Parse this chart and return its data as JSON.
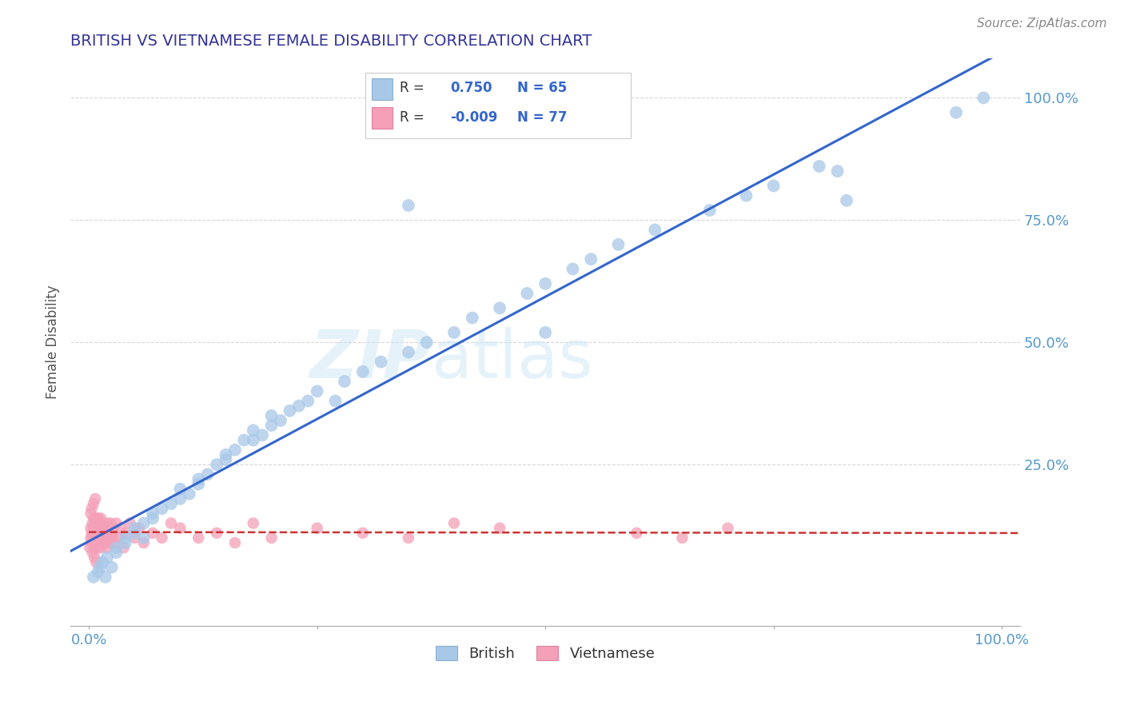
{
  "title": "BRITISH VS VIETNAMESE FEMALE DISABILITY CORRELATION CHART",
  "source": "Source: ZipAtlas.com",
  "ylabel": "Female Disability",
  "british_r": 0.75,
  "british_n": 65,
  "vietnamese_r": -0.009,
  "vietnamese_n": 77,
  "british_color": "#a8c8e8",
  "vietnamese_color": "#f4a0b8",
  "british_line_color": "#3366cc",
  "vietnamese_line_color": "#cc3333",
  "grid_color": "#cccccc",
  "watermark": "ZIPatlas",
  "legend_british": "British",
  "legend_vietnamese": "Vietnamese",
  "title_color": "#333399",
  "source_color": "#888888",
  "axis_tick_color": "#5599cc",
  "xlim": [
    0.0,
    1.0
  ],
  "ylim": [
    -0.05,
    1.05
  ],
  "british_x": [
    0.005,
    0.01,
    0.012,
    0.015,
    0.018,
    0.02,
    0.025,
    0.03,
    0.03,
    0.04,
    0.04,
    0.05,
    0.05,
    0.06,
    0.06,
    0.07,
    0.07,
    0.08,
    0.09,
    0.1,
    0.1,
    0.11,
    0.12,
    0.12,
    0.13,
    0.14,
    0.15,
    0.15,
    0.16,
    0.17,
    0.18,
    0.18,
    0.19,
    0.2,
    0.2,
    0.21,
    0.22,
    0.23,
    0.24,
    0.25,
    0.27,
    0.28,
    0.3,
    0.32,
    0.35,
    0.37,
    0.4,
    0.42,
    0.45,
    0.48,
    0.5,
    0.53,
    0.55,
    0.58,
    0.62,
    0.68,
    0.72,
    0.75,
    0.8,
    0.35,
    0.5,
    0.82,
    0.95,
    0.98,
    0.83
  ],
  "british_y": [
    0.02,
    0.03,
    0.04,
    0.05,
    0.02,
    0.06,
    0.04,
    0.07,
    0.08,
    0.09,
    0.1,
    0.11,
    0.12,
    0.1,
    0.13,
    0.14,
    0.15,
    0.16,
    0.17,
    0.18,
    0.2,
    0.19,
    0.21,
    0.22,
    0.23,
    0.25,
    0.26,
    0.27,
    0.28,
    0.3,
    0.3,
    0.32,
    0.31,
    0.33,
    0.35,
    0.34,
    0.36,
    0.37,
    0.38,
    0.4,
    0.38,
    0.42,
    0.44,
    0.46,
    0.48,
    0.5,
    0.52,
    0.55,
    0.57,
    0.6,
    0.62,
    0.65,
    0.67,
    0.7,
    0.73,
    0.77,
    0.8,
    0.82,
    0.86,
    0.78,
    0.52,
    0.85,
    0.97,
    1.0,
    0.79
  ],
  "vietnamese_x": [
    0.001,
    0.002,
    0.002,
    0.003,
    0.003,
    0.004,
    0.004,
    0.005,
    0.005,
    0.006,
    0.006,
    0.007,
    0.007,
    0.008,
    0.008,
    0.009,
    0.009,
    0.01,
    0.01,
    0.011,
    0.011,
    0.012,
    0.012,
    0.013,
    0.013,
    0.014,
    0.015,
    0.015,
    0.016,
    0.017,
    0.018,
    0.019,
    0.02,
    0.02,
    0.021,
    0.022,
    0.023,
    0.024,
    0.025,
    0.026,
    0.027,
    0.028,
    0.03,
    0.032,
    0.035,
    0.038,
    0.04,
    0.045,
    0.05,
    0.055,
    0.06,
    0.07,
    0.08,
    0.09,
    0.1,
    0.12,
    0.14,
    0.16,
    0.18,
    0.2,
    0.25,
    0.3,
    0.35,
    0.4,
    0.45,
    0.6,
    0.65,
    0.7,
    0.002,
    0.003,
    0.004,
    0.005,
    0.006,
    0.007,
    0.008,
    0.01,
    0.012
  ],
  "vietnamese_y": [
    0.08,
    0.1,
    0.12,
    0.09,
    0.11,
    0.13,
    0.1,
    0.12,
    0.14,
    0.08,
    0.1,
    0.11,
    0.13,
    0.09,
    0.12,
    0.1,
    0.14,
    0.08,
    0.11,
    0.13,
    0.09,
    0.12,
    0.1,
    0.14,
    0.08,
    0.11,
    0.13,
    0.1,
    0.12,
    0.09,
    0.11,
    0.1,
    0.13,
    0.08,
    0.12,
    0.11,
    0.09,
    0.13,
    0.1,
    0.12,
    0.11,
    0.09,
    0.13,
    0.1,
    0.12,
    0.08,
    0.11,
    0.13,
    0.1,
    0.12,
    0.09,
    0.11,
    0.1,
    0.13,
    0.12,
    0.1,
    0.11,
    0.09,
    0.13,
    0.1,
    0.12,
    0.11,
    0.1,
    0.13,
    0.12,
    0.11,
    0.1,
    0.12,
    0.15,
    0.16,
    0.07,
    0.17,
    0.06,
    0.18,
    0.05,
    0.14,
    0.13
  ]
}
